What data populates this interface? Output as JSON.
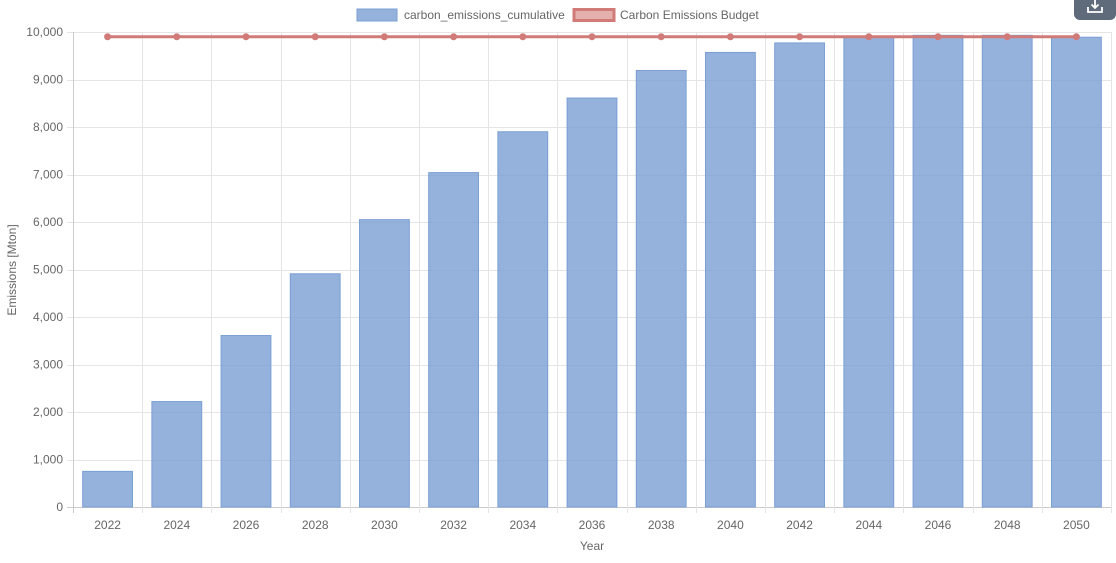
{
  "chart_data": {
    "type": "bar",
    "categories": [
      "2022",
      "2024",
      "2026",
      "2028",
      "2030",
      "2032",
      "2034",
      "2036",
      "2038",
      "2040",
      "2042",
      "2044",
      "2046",
      "2048",
      "2050"
    ],
    "series": [
      {
        "name": "carbon_emissions_cumulative",
        "kind": "bar",
        "color": "#7b9fd4",
        "values": [
          750,
          2220,
          3610,
          4910,
          6050,
          7040,
          7900,
          8610,
          9190,
          9570,
          9770,
          9900,
          9930,
          9930,
          9890
        ]
      },
      {
        "name": "Carbon Emissions Budget",
        "kind": "line",
        "color": "#d17b78",
        "values": [
          9900,
          9900,
          9900,
          9900,
          9900,
          9900,
          9900,
          9900,
          9900,
          9900,
          9900,
          9900,
          9900,
          9900,
          9900
        ]
      }
    ],
    "xlabel": "Year",
    "ylabel": "Emissions [Mton]",
    "ylim": [
      0,
      10000
    ],
    "yticks": [
      "0",
      "1,000",
      "2,000",
      "3,000",
      "4,000",
      "5,000",
      "6,000",
      "7,000",
      "8,000",
      "9,000",
      "10,000"
    ],
    "grid": true,
    "legend_position": "top"
  },
  "toolbar": {
    "download_icon": "download-icon"
  }
}
